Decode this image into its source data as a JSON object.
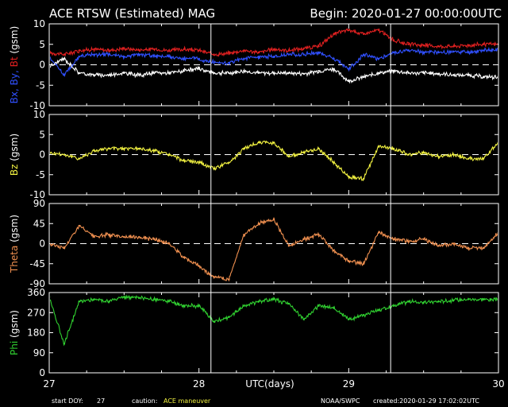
{
  "header": {
    "title": "ACE RTSW (Estimated) MAG",
    "begin": "Begin: 2020-01-27 00:00:00UTC"
  },
  "footer": {
    "start_doy_label": "start DOY:",
    "start_doy": "27",
    "caution_label": "caution:",
    "caution_text": "ACE maneuver",
    "xlabel": "UTC(days)",
    "agency": "NOAA/SWPC",
    "created": "created:2020-01-29 17:02:02UTC"
  },
  "colors": {
    "background": "#000000",
    "axes": "#ffffff",
    "bx": "#ffffff",
    "by": "#3050ff",
    "bt": "#e02020",
    "bz": "#f0f040",
    "theta": "#f09050",
    "phi": "#30d030",
    "caution": "#f0f040"
  },
  "chart_data": {
    "type": "scatter",
    "x_range": [
      27,
      30
    ],
    "x_ticks": [
      "27",
      "28",
      "29",
      "30"
    ],
    "xlabel": "UTC(days)",
    "event_markers_days": [
      28.08,
      29.28
    ],
    "panels": [
      {
        "id": "b",
        "ylabel_parts": [
          {
            "text": "Bx,",
            "color": "#3050ff"
          },
          {
            "text": " By,",
            "color": "#3050ff"
          },
          {
            "text": " Bt",
            "color": "#e02020"
          },
          {
            "text": " (gsm)",
            "color": "#ffffff"
          }
        ],
        "ylim": [
          -10,
          10
        ],
        "ticks": [
          "10",
          "5",
          "0",
          "-5",
          "-10"
        ],
        "tick_values": [
          10,
          5,
          0,
          -5,
          -10
        ],
        "zero_line": 0,
        "series": [
          {
            "id": "bt",
            "label": "Bt",
            "color": "#e02020",
            "x": [
              27.0,
              27.1,
              27.2,
              27.3,
              27.4,
              27.5,
              27.6,
              27.7,
              27.8,
              27.9,
              28.0,
              28.1,
              28.2,
              28.3,
              28.4,
              28.5,
              28.6,
              28.7,
              28.8,
              28.9,
              29.0,
              29.1,
              29.2,
              29.3,
              29.4,
              29.5,
              29.6,
              29.7,
              29.8,
              29.9,
              30.0
            ],
            "y": [
              3.0,
              2.5,
              3.5,
              3.8,
              3.5,
              4.0,
              3.6,
              3.8,
              3.5,
              3.8,
              3.5,
              2.5,
              2.8,
              3.5,
              3.0,
              3.8,
              3.5,
              4.0,
              4.5,
              7.5,
              8.5,
              7.5,
              8.5,
              6.0,
              5.0,
              4.8,
              4.5,
              4.5,
              4.8,
              5.0,
              5.0
            ]
          },
          {
            "id": "by",
            "label": "By",
            "color": "#3050ff",
            "x": [
              27.0,
              27.1,
              27.2,
              27.3,
              27.4,
              27.5,
              27.6,
              27.7,
              27.8,
              27.9,
              28.0,
              28.1,
              28.2,
              28.3,
              28.4,
              28.5,
              28.6,
              28.7,
              28.8,
              28.9,
              29.0,
              29.1,
              29.2,
              29.3,
              29.4,
              29.5,
              29.6,
              29.7,
              29.8,
              29.9,
              30.0
            ],
            "y": [
              2.0,
              -2.5,
              2.0,
              2.5,
              2.5,
              2.0,
              2.5,
              2.2,
              2.0,
              1.5,
              1.5,
              0.5,
              0.5,
              1.5,
              2.0,
              2.0,
              2.5,
              2.5,
              3.0,
              1.5,
              -1.0,
              2.5,
              1.5,
              3.0,
              3.5,
              3.0,
              3.0,
              3.2,
              3.0,
              3.5,
              3.5
            ]
          },
          {
            "id": "bx",
            "label": "Bx",
            "color": "#ffffff",
            "x": [
              27.0,
              27.1,
              27.2,
              27.3,
              27.4,
              27.5,
              27.6,
              27.7,
              27.8,
              27.9,
              28.0,
              28.1,
              28.2,
              28.3,
              28.4,
              28.5,
              28.6,
              28.7,
              28.8,
              28.9,
              29.0,
              29.1,
              29.2,
              29.3,
              29.4,
              29.5,
              29.6,
              29.7,
              29.8,
              29.9,
              30.0
            ],
            "y": [
              -0.5,
              1.5,
              -2.0,
              -2.5,
              -2.5,
              -2.0,
              -2.5,
              -2.0,
              -2.0,
              -1.5,
              -1.0,
              -2.0,
              -2.0,
              -1.5,
              -2.0,
              -2.0,
              -2.0,
              -2.2,
              -1.5,
              -1.0,
              -4.0,
              -3.0,
              -2.0,
              -1.5,
              -2.0,
              -2.0,
              -2.2,
              -2.5,
              -2.5,
              -3.0,
              -3.0
            ]
          }
        ]
      },
      {
        "id": "bz",
        "ylabel_parts": [
          {
            "text": "Bz",
            "color": "#f0f040"
          },
          {
            "text": " (gsm)",
            "color": "#ffffff"
          }
        ],
        "ylim": [
          -10,
          10
        ],
        "ticks": [
          "10",
          "5",
          "0",
          "-5",
          "-10"
        ],
        "tick_values": [
          10,
          5,
          0,
          -5,
          -10
        ],
        "zero_line": 0,
        "series": [
          {
            "id": "bz",
            "label": "Bz",
            "color": "#f0f040",
            "x": [
              27.0,
              27.1,
              27.2,
              27.3,
              27.4,
              27.5,
              27.6,
              27.7,
              27.8,
              27.9,
              28.0,
              28.1,
              28.2,
              28.3,
              28.4,
              28.5,
              28.6,
              28.7,
              28.8,
              28.9,
              29.0,
              29.1,
              29.2,
              29.3,
              29.4,
              29.5,
              29.6,
              29.7,
              29.8,
              29.9,
              30.0
            ],
            "y": [
              0.5,
              0.0,
              -1.0,
              1.0,
              1.5,
              1.5,
              1.5,
              1.0,
              0.0,
              -1.5,
              -2.0,
              -3.5,
              -2.0,
              1.5,
              3.0,
              3.0,
              -0.5,
              0.5,
              1.5,
              -2.0,
              -5.5,
              -6.0,
              2.0,
              1.5,
              0.0,
              0.5,
              -0.5,
              0.0,
              -1.0,
              -1.0,
              3.0
            ]
          }
        ]
      },
      {
        "id": "theta",
        "ylabel_parts": [
          {
            "text": "Theta",
            "color": "#f09050"
          },
          {
            "text": " (gsm)",
            "color": "#ffffff"
          }
        ],
        "ylim": [
          -90,
          90
        ],
        "ticks": [
          "90",
          "45",
          "0",
          "-45",
          "-90"
        ],
        "tick_values": [
          90,
          45,
          0,
          -45,
          -90
        ],
        "zero_line": 0,
        "series": [
          {
            "id": "theta",
            "label": "Theta",
            "color": "#f09050",
            "x": [
              27.0,
              27.1,
              27.2,
              27.3,
              27.4,
              27.5,
              27.6,
              27.7,
              27.8,
              27.9,
              28.0,
              28.1,
              28.2,
              28.3,
              28.4,
              28.5,
              28.6,
              28.7,
              28.8,
              28.9,
              29.0,
              29.1,
              29.2,
              29.3,
              29.4,
              29.5,
              29.6,
              29.7,
              29.8,
              29.9,
              30.0
            ],
            "y": [
              0.0,
              -10.0,
              40.0,
              15.0,
              20.0,
              15.0,
              15.0,
              10.0,
              0.0,
              -30.0,
              -50.0,
              -75.0,
              -80.0,
              20.0,
              45.0,
              55.0,
              -5.0,
              10.0,
              20.0,
              -15.0,
              -40.0,
              -45.0,
              25.0,
              10.0,
              5.0,
              10.0,
              -5.0,
              0.0,
              -10.0,
              -10.0,
              25.0
            ]
          }
        ]
      },
      {
        "id": "phi",
        "ylabel_parts": [
          {
            "text": "Phi",
            "color": "#30d030"
          },
          {
            "text": " (gsm)",
            "color": "#ffffff"
          }
        ],
        "ylim": [
          0,
          360
        ],
        "ticks": [
          "360",
          "270",
          "180",
          "90",
          "0"
        ],
        "tick_values": [
          360,
          270,
          180,
          90,
          0
        ],
        "zero_line": null,
        "series": [
          {
            "id": "phi",
            "label": "Phi",
            "color": "#30d030",
            "x": [
              27.0,
              27.1,
              27.2,
              27.3,
              27.4,
              27.5,
              27.6,
              27.7,
              27.8,
              27.9,
              28.0,
              28.1,
              28.2,
              28.3,
              28.4,
              28.5,
              28.6,
              28.7,
              28.8,
              28.9,
              29.0,
              29.1,
              29.2,
              29.3,
              29.4,
              29.5,
              29.6,
              29.7,
              29.8,
              29.9,
              30.0
            ],
            "y": [
              340.0,
              130.0,
              320.0,
              330.0,
              320.0,
              340.0,
              335.0,
              330.0,
              320.0,
              300.0,
              300.0,
              230.0,
              250.0,
              300.0,
              320.0,
              330.0,
              310.0,
              240.0,
              300.0,
              290.0,
              240.0,
              260.0,
              280.0,
              300.0,
              320.0,
              315.0,
              320.0,
              325.0,
              330.0,
              330.0,
              325.0
            ]
          }
        ]
      }
    ]
  }
}
